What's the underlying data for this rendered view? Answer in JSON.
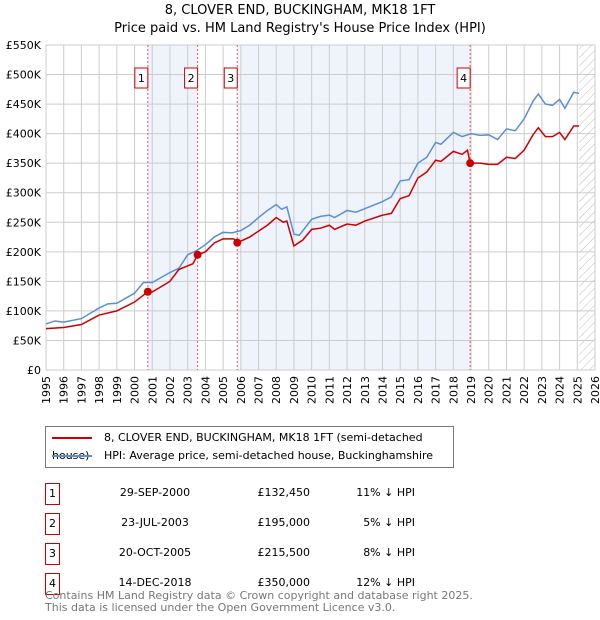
{
  "chart_data": {
    "type": "line",
    "title": "8, CLOVER END, BUCKINGHAM, MK18 1FT",
    "subtitle": "Price paid vs. HM Land Registry's House Price Index (HPI)",
    "xlim": [
      1995,
      2026
    ],
    "ylim": [
      0,
      550000
    ],
    "y_ticks": [
      "£0",
      "£50K",
      "£100K",
      "£150K",
      "£200K",
      "£250K",
      "£300K",
      "£350K",
      "£400K",
      "£450K",
      "£500K",
      "£550K"
    ],
    "x_ticks": [
      "1995",
      "1996",
      "1997",
      "1998",
      "1999",
      "2000",
      "2001",
      "2002",
      "2003",
      "2004",
      "2005",
      "2006",
      "2007",
      "2008",
      "2009",
      "2010",
      "2011",
      "2012",
      "2013",
      "2014",
      "2015",
      "2016",
      "2017",
      "2018",
      "2019",
      "2020",
      "2021",
      "2022",
      "2023",
      "2024",
      "2025",
      "2026"
    ],
    "grid": true,
    "colors": {
      "property": "#cc0000",
      "hpi": "#5b8fd4",
      "shade": "#eef3fc"
    },
    "series": [
      {
        "name": "8, CLOVER END, BUCKINGHAM, MK18 1FT (semi-detached house)",
        "points": [
          [
            1995,
            70
          ],
          [
            1996,
            72
          ],
          [
            1997,
            77
          ],
          [
            1998,
            93
          ],
          [
            1999,
            100
          ],
          [
            2000,
            115
          ],
          [
            2000.75,
            132.45
          ],
          [
            2001,
            132
          ],
          [
            2002,
            150
          ],
          [
            2002.5,
            170
          ],
          [
            2003.3,
            180
          ],
          [
            2003.56,
            195
          ],
          [
            2004,
            200
          ],
          [
            2004.5,
            215
          ],
          [
            2005,
            222
          ],
          [
            2005.6,
            222
          ],
          [
            2005.8,
            215.5
          ],
          [
            2006.5,
            225
          ],
          [
            2007,
            235
          ],
          [
            2007.5,
            245
          ],
          [
            2008,
            258
          ],
          [
            2008.4,
            250
          ],
          [
            2008.6,
            252
          ],
          [
            2009,
            210
          ],
          [
            2009.5,
            220
          ],
          [
            2010,
            238
          ],
          [
            2010.5,
            240
          ],
          [
            2011,
            245
          ],
          [
            2011.3,
            238
          ],
          [
            2012,
            247
          ],
          [
            2012.5,
            245
          ],
          [
            2013,
            252
          ],
          [
            2014,
            262
          ],
          [
            2014.5,
            265
          ],
          [
            2015,
            290
          ],
          [
            2015.5,
            295
          ],
          [
            2016,
            325
          ],
          [
            2016.5,
            335
          ],
          [
            2017,
            355
          ],
          [
            2017.3,
            353
          ],
          [
            2018,
            370
          ],
          [
            2018.5,
            365
          ],
          [
            2018.8,
            372
          ],
          [
            2018.95,
            350
          ],
          [
            2019.5,
            350
          ],
          [
            2020,
            348
          ],
          [
            2020.5,
            348
          ],
          [
            2021,
            360
          ],
          [
            2021.5,
            358
          ],
          [
            2022,
            372
          ],
          [
            2022.5,
            398
          ],
          [
            2022.8,
            410
          ],
          [
            2023.2,
            395
          ],
          [
            2023.6,
            395
          ],
          [
            2024,
            402
          ],
          [
            2024.3,
            390
          ],
          [
            2024.8,
            413
          ],
          [
            2025.1,
            413
          ]
        ]
      },
      {
        "name": "HPI: Average price, semi-detached house, Buckinghamshire",
        "points": [
          [
            1995,
            78
          ],
          [
            1995.5,
            83
          ],
          [
            1996,
            81
          ],
          [
            1997,
            87
          ],
          [
            1998,
            105
          ],
          [
            1998.5,
            112
          ],
          [
            1999,
            113
          ],
          [
            2000,
            130
          ],
          [
            2000.5,
            148
          ],
          [
            2001,
            148
          ],
          [
            2002,
            165
          ],
          [
            2002.5,
            172
          ],
          [
            2003,
            195
          ],
          [
            2003.5,
            202
          ],
          [
            2004,
            212
          ],
          [
            2004.5,
            225
          ],
          [
            2005,
            233
          ],
          [
            2005.5,
            232
          ],
          [
            2006,
            236
          ],
          [
            2006.5,
            245
          ],
          [
            2007,
            258
          ],
          [
            2007.5,
            270
          ],
          [
            2008,
            280
          ],
          [
            2008.3,
            272
          ],
          [
            2008.6,
            276
          ],
          [
            2009,
            230
          ],
          [
            2009.3,
            228
          ],
          [
            2010,
            255
          ],
          [
            2010.5,
            260
          ],
          [
            2011,
            262
          ],
          [
            2011.3,
            258
          ],
          [
            2012,
            270
          ],
          [
            2012.5,
            267
          ],
          [
            2013,
            273
          ],
          [
            2014,
            285
          ],
          [
            2014.5,
            293
          ],
          [
            2015,
            320
          ],
          [
            2015.5,
            322
          ],
          [
            2016,
            350
          ],
          [
            2016.5,
            360
          ],
          [
            2017,
            385
          ],
          [
            2017.3,
            382
          ],
          [
            2018,
            402
          ],
          [
            2018.5,
            395
          ],
          [
            2019,
            400
          ],
          [
            2019.5,
            397
          ],
          [
            2020,
            398
          ],
          [
            2020.5,
            390
          ],
          [
            2021,
            408
          ],
          [
            2021.5,
            405
          ],
          [
            2022,
            425
          ],
          [
            2022.5,
            455
          ],
          [
            2022.8,
            467
          ],
          [
            2023.2,
            450
          ],
          [
            2023.6,
            448
          ],
          [
            2024,
            458
          ],
          [
            2024.3,
            443
          ],
          [
            2024.8,
            470
          ],
          [
            2025.1,
            468
          ]
        ]
      }
    ],
    "value_units": "thousand GBP",
    "sales": [
      {
        "n": "1",
        "x": 2000.75,
        "y": 132.45,
        "date": "29-SEP-2000",
        "price": "£132,450",
        "hpi": "11% ↓ HPI"
      },
      {
        "n": "2",
        "x": 2003.56,
        "y": 195,
        "date": "23-JUL-2003",
        "price": "£195,000",
        "hpi": "5% ↓ HPI"
      },
      {
        "n": "3",
        "x": 2005.8,
        "y": 215.5,
        "date": "20-OCT-2005",
        "price": "£215,500",
        "hpi": "8% ↓ HPI"
      },
      {
        "n": "4",
        "x": 2018.95,
        "y": 350,
        "date": "14-DEC-2018",
        "price": "£350,000",
        "hpi": "12% ↓ HPI"
      }
    ],
    "data_end": 2025.1
  },
  "footer": {
    "line1": "Contains HM Land Registry data © Crown copyright and database right 2025.",
    "line2": "This data is licensed under the Open Government Licence v3.0."
  }
}
